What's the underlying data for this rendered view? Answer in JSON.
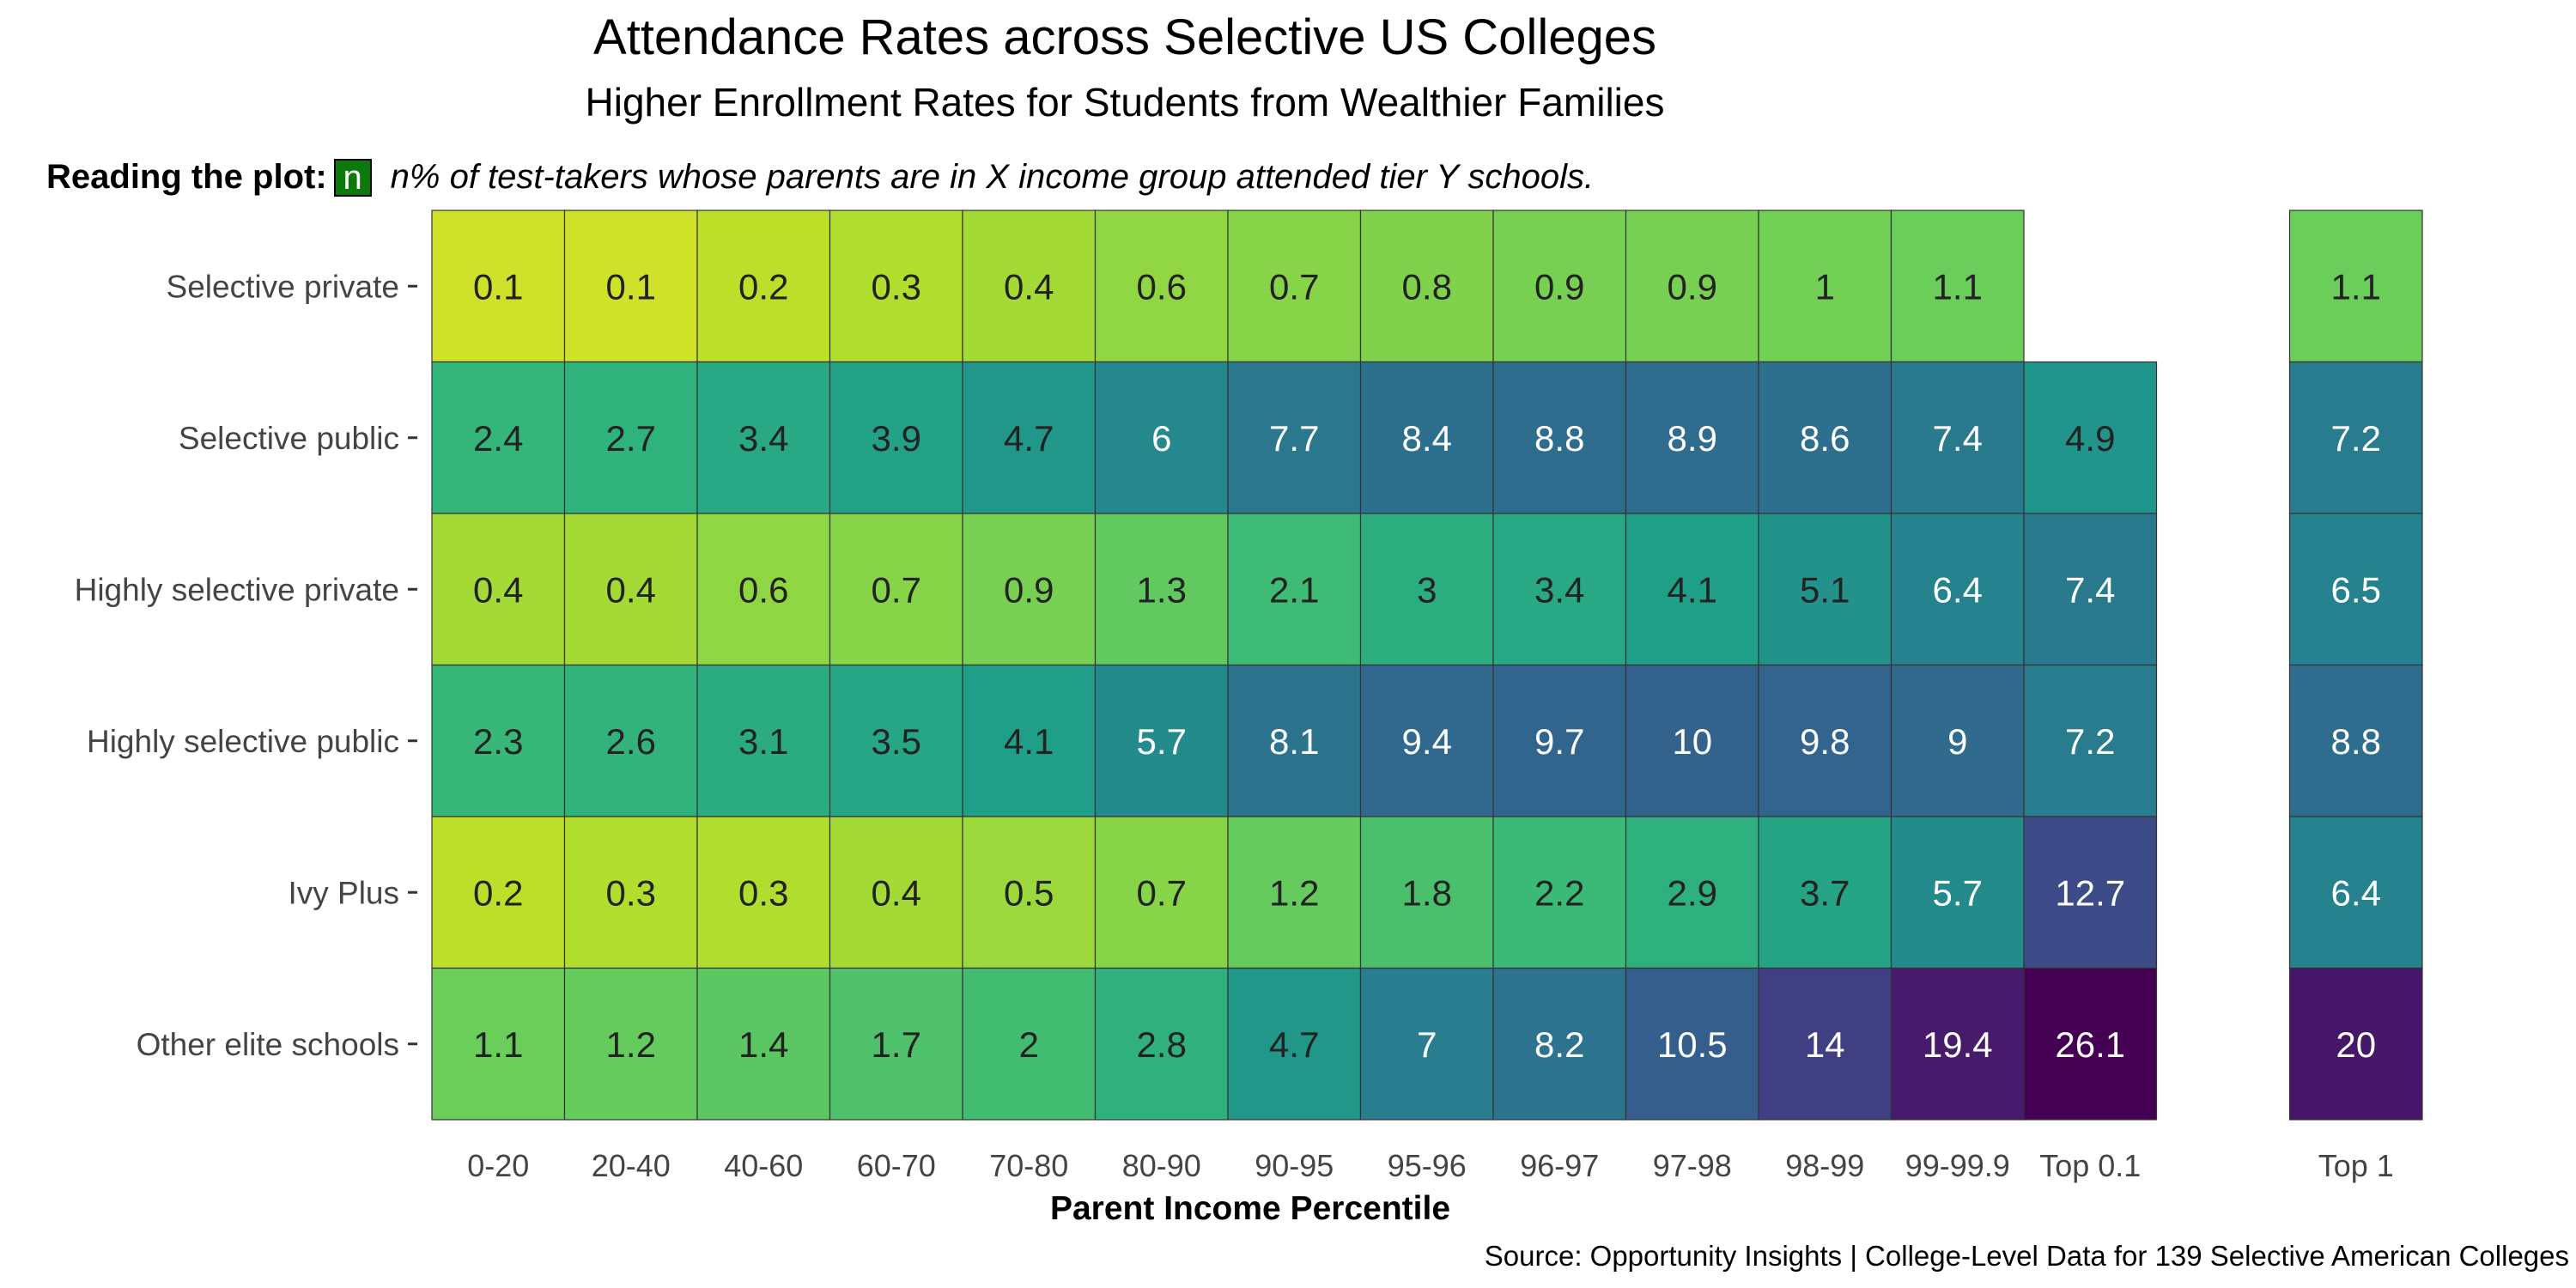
{
  "title": "Attendance Rates across Selective US Colleges",
  "subtitle": "Higher Enrollment Rates for Students from Wealthier Families",
  "reading": {
    "label": "Reading the plot:",
    "key": "n",
    "text": "n% of test-takers whose parents are in X income group attended tier Y schools."
  },
  "source": "Source: Opportunity Insights | College-Level Data for 139 Selective American Colleges",
  "chart_data": {
    "type": "heatmap",
    "xlabel": "Parent Income Percentile",
    "ylabel": "",
    "categories": [
      "0-20",
      "20-40",
      "40-60",
      "60-70",
      "70-80",
      "80-90",
      "90-95",
      "95-96",
      "96-97",
      "97-98",
      "98-99",
      "99-99.9",
      "Top 0.1",
      "Top 1"
    ],
    "rows": [
      "Selective private",
      "Selective public",
      "Highly selective private",
      "Highly selective public",
      "Ivy Plus",
      "Other elite schools"
    ],
    "values": [
      [
        0.1,
        0.1,
        0.2,
        0.3,
        0.4,
        0.6,
        0.7,
        0.8,
        0.9,
        0.9,
        1,
        1.1,
        null,
        1.1
      ],
      [
        2.4,
        2.7,
        3.4,
        3.9,
        4.7,
        6,
        7.7,
        8.4,
        8.8,
        8.9,
        8.6,
        7.4,
        4.9,
        7.2
      ],
      [
        0.4,
        0.4,
        0.6,
        0.7,
        0.9,
        1.3,
        2.1,
        3,
        3.4,
        4.1,
        5.1,
        6.4,
        7.4,
        6.5
      ],
      [
        2.3,
        2.6,
        3.1,
        3.5,
        4.1,
        5.7,
        8.1,
        9.4,
        9.7,
        10,
        9.8,
        9,
        7.2,
        8.8
      ],
      [
        0.2,
        0.3,
        0.3,
        0.4,
        0.5,
        0.7,
        1.2,
        1.8,
        2.2,
        2.9,
        3.7,
        5.7,
        12.7,
        6.4
      ],
      [
        1.1,
        1.2,
        1.4,
        1.7,
        2,
        2.8,
        4.7,
        7,
        8.2,
        10.5,
        14,
        19.4,
        26.1,
        20
      ]
    ],
    "colorscale": "viridis (reversed): low values yellow, high values dark purple",
    "value_range": [
      0,
      26.1
    ],
    "grid": false,
    "legend": "none"
  }
}
